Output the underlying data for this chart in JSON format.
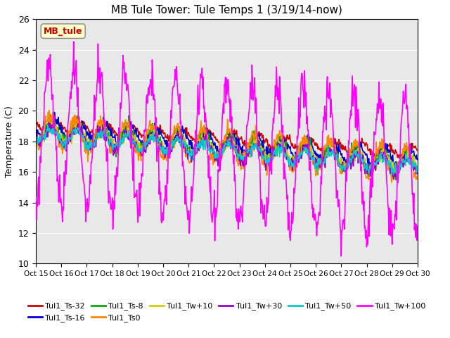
{
  "title": "MB Tule Tower: Tule Temps 1 (3/19/14-now)",
  "ylabel": "Temperature (C)",
  "ylim": [
    10,
    26
  ],
  "yticks": [
    10,
    12,
    14,
    16,
    18,
    20,
    22,
    24,
    26
  ],
  "x_labels": [
    "Oct 15",
    "Oct 16",
    "Oct 17",
    "Oct 18",
    "Oct 19",
    "Oct 20",
    "Oct 21",
    "Oct 22",
    "Oct 23",
    "Oct 24",
    "Oct 25",
    "Oct 26",
    "Oct 27",
    "Oct 28",
    "Oct 29",
    "Oct 30"
  ],
  "x_label_short": [
    "Oct 15",
    "16Oct",
    "17Oct",
    "18Oct",
    "19Oct",
    "20Oct",
    "21Oct",
    "22Oct",
    "23Oct",
    "24Oct",
    "25Oct",
    "26Oct",
    "27Oct",
    "28Oct",
    "29Oct",
    "30"
  ],
  "legend_box_label": "MB_tule",
  "series_order": [
    "Tul1_Ts-32",
    "Tul1_Ts-16",
    "Tul1_Ts-8",
    "Tul1_Ts0",
    "Tul1_Tw+10",
    "Tul1_Tw+30",
    "Tul1_Tw+50",
    "Tul1_Tw+100"
  ],
  "series": {
    "Tul1_Ts-32": {
      "color": "#cc0000",
      "lw": 1.2
    },
    "Tul1_Ts-16": {
      "color": "#0000cc",
      "lw": 1.2
    },
    "Tul1_Ts-8": {
      "color": "#00aa00",
      "lw": 1.2
    },
    "Tul1_Ts0": {
      "color": "#ff8800",
      "lw": 1.2
    },
    "Tul1_Tw+10": {
      "color": "#cccc00",
      "lw": 1.2
    },
    "Tul1_Tw+30": {
      "color": "#9900cc",
      "lw": 1.2
    },
    "Tul1_Tw+50": {
      "color": "#00cccc",
      "lw": 1.2
    },
    "Tul1_Tw+100": {
      "color": "#ff00ff",
      "lw": 1.2
    }
  },
  "background_color": "#ffffff",
  "plot_bg_color": "#e8e8e8",
  "grid_color": "#ffffff"
}
